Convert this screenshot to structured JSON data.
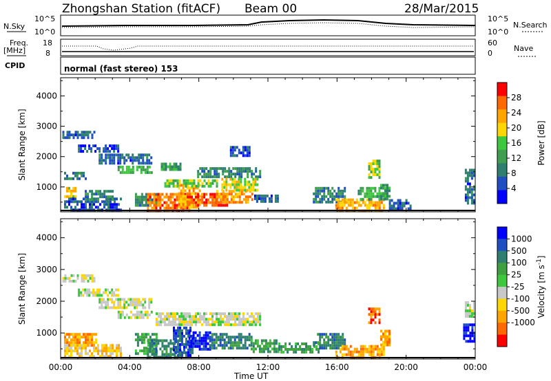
{
  "header": {
    "station": "Zhongshan Station (fitACF)",
    "beam": "Beam 00",
    "date": "28/Mar/2015"
  },
  "strip": {
    "nsky_label": "N.Sky",
    "nsearch_label": "N.Search",
    "noise_ticks": [
      "10^5",
      "10^0"
    ],
    "freq_label": "Freq.",
    "freq_unit": "[MHz]",
    "freq_ticks": [
      "18",
      "8"
    ],
    "nave_label": "Nave",
    "nave_ticks": [
      "60",
      "0"
    ],
    "cpid_label": "CPID",
    "cpid_text": "normal (fast stereo) 153"
  },
  "chart_data": [
    {
      "type": "heatmap",
      "panel": "power",
      "ylabel": "Slant Range [km]",
      "xlabel": "",
      "x_ticks": [
        "00:00",
        "04:00",
        "08:00",
        "12:00",
        "16:00",
        "20:00",
        "00:00"
      ],
      "xlim_hours": [
        0,
        24
      ],
      "y_ticks": [
        1000,
        2000,
        3000,
        4000
      ],
      "ylim": [
        180,
        4600
      ],
      "colorbar": {
        "label": "Power [dB]",
        "ticks": [
          "4",
          "8",
          "12",
          "16",
          "20",
          "24",
          "28"
        ],
        "range": [
          0,
          32
        ],
        "colors": [
          "#0000ff",
          "#1f4fc0",
          "#2f7f6f",
          "#3f9f4f",
          "#3fc83f",
          "#ffd700",
          "#ffa500",
          "#ff6a00",
          "#ff0000"
        ]
      },
      "bands": [
        {
          "x0": 0.1,
          "x1": 2.0,
          "y0": 2650,
          "y1": 2850,
          "level": 6
        },
        {
          "x0": 1.0,
          "x1": 3.3,
          "y0": 2150,
          "y1": 2400,
          "level": 5
        },
        {
          "x0": 2.2,
          "x1": 5.2,
          "y0": 1800,
          "y1": 2100,
          "level": 7
        },
        {
          "x0": 3.3,
          "x1": 5.3,
          "y0": 1450,
          "y1": 1700,
          "level": 14
        },
        {
          "x0": 0.2,
          "x1": 1.4,
          "y0": 1300,
          "y1": 1500,
          "level": 9
        },
        {
          "x0": 0.2,
          "x1": 0.8,
          "y0": 650,
          "y1": 1000,
          "level": 20
        },
        {
          "x0": 0.2,
          "x1": 3.5,
          "y0": 200,
          "y1": 650,
          "level": 6
        },
        {
          "x0": 1.4,
          "x1": 3.0,
          "y0": 600,
          "y1": 900,
          "level": 10
        },
        {
          "x0": 4.3,
          "x1": 5.7,
          "y0": 350,
          "y1": 800,
          "level": 10
        },
        {
          "x0": 5.0,
          "x1": 7.4,
          "y0": 250,
          "y1": 800,
          "level": 26
        },
        {
          "x0": 6.8,
          "x1": 8.0,
          "y0": 350,
          "y1": 1100,
          "level": 22
        },
        {
          "x0": 7.3,
          "x1": 9.6,
          "y0": 380,
          "y1": 800,
          "level": 28
        },
        {
          "x0": 9.0,
          "x1": 11.1,
          "y0": 500,
          "y1": 900,
          "level": 24
        },
        {
          "x0": 6.0,
          "x1": 9.1,
          "y0": 1050,
          "y1": 1250,
          "level": 16
        },
        {
          "x0": 7.9,
          "x1": 11.5,
          "y0": 1350,
          "y1": 1650,
          "level": 9
        },
        {
          "x0": 9.3,
          "x1": 11.4,
          "y0": 850,
          "y1": 1300,
          "level": 19
        },
        {
          "x0": 5.8,
          "x1": 6.9,
          "y0": 1600,
          "y1": 1800,
          "level": 12
        },
        {
          "x0": 9.8,
          "x1": 10.9,
          "y0": 2000,
          "y1": 2350,
          "level": 6
        },
        {
          "x0": 11.2,
          "x1": 12.6,
          "y0": 500,
          "y1": 750,
          "level": 7
        },
        {
          "x0": 14.6,
          "x1": 16.5,
          "y0": 500,
          "y1": 1000,
          "level": 9
        },
        {
          "x0": 15.9,
          "x1": 18.7,
          "y0": 220,
          "y1": 620,
          "level": 23
        },
        {
          "x0": 17.2,
          "x1": 18.8,
          "y0": 600,
          "y1": 1000,
          "level": 14
        },
        {
          "x0": 17.8,
          "x1": 18.5,
          "y0": 1300,
          "y1": 1900,
          "level": 16
        },
        {
          "x0": 18.5,
          "x1": 19.0,
          "y0": 600,
          "y1": 1100,
          "level": 12
        },
        {
          "x0": 19.0,
          "x1": 20.3,
          "y0": 300,
          "y1": 600,
          "level": 6
        },
        {
          "x0": 23.4,
          "x1": 23.95,
          "y0": 500,
          "y1": 1600,
          "level": 7
        }
      ]
    },
    {
      "type": "heatmap",
      "panel": "velocity",
      "ylabel": "Slant Range [km]",
      "xlabel": "Time UT",
      "x_ticks": [
        "00:00",
        "04:00",
        "08:00",
        "12:00",
        "16:00",
        "20:00",
        "00:00"
      ],
      "xlim_hours": [
        0,
        24
      ],
      "y_ticks": [
        1000,
        2000,
        3000,
        4000
      ],
      "ylim": [
        180,
        4600
      ],
      "colorbar": {
        "label": "Velocity [m s^-1]",
        "ticks": [
          "1000",
          "500",
          "100",
          "25",
          "-25",
          "-100",
          "-500",
          "-1000"
        ],
        "colors": [
          "#0000ff",
          "#1f4fc0",
          "#2f7f6f",
          "#3fa03f",
          "#3fc83f",
          "#c8c8c8",
          "#ffd700",
          "#ffa500",
          "#ff6a00",
          "#ff0000"
        ]
      },
      "bands": [
        {
          "x0": 0.1,
          "x1": 2.0,
          "y0": 2600,
          "y1": 2850,
          "level": 5
        },
        {
          "x0": 1.0,
          "x1": 3.3,
          "y0": 2150,
          "y1": 2400,
          "level": 5
        },
        {
          "x0": 2.2,
          "x1": 5.2,
          "y0": 1800,
          "y1": 2100,
          "level": 5
        },
        {
          "x0": 3.3,
          "x1": 5.3,
          "y0": 1450,
          "y1": 1700,
          "level": 5
        },
        {
          "x0": 5.5,
          "x1": 11.5,
          "y0": 1250,
          "y1": 1650,
          "level": 5
        },
        {
          "x0": 0.2,
          "x1": 2.0,
          "y0": 650,
          "y1": 1000,
          "level": 7
        },
        {
          "x0": 0.2,
          "x1": 3.5,
          "y0": 250,
          "y1": 650,
          "level": 6
        },
        {
          "x0": 4.3,
          "x1": 5.6,
          "y0": 350,
          "y1": 1000,
          "level": 3
        },
        {
          "x0": 5.0,
          "x1": 7.0,
          "y0": 250,
          "y1": 800,
          "level": 2
        },
        {
          "x0": 6.5,
          "x1": 7.6,
          "y0": 300,
          "y1": 1200,
          "level": 1
        },
        {
          "x0": 7.4,
          "x1": 8.6,
          "y0": 450,
          "y1": 1050,
          "level": 0
        },
        {
          "x0": 8.6,
          "x1": 11.0,
          "y0": 500,
          "y1": 1000,
          "level": 2
        },
        {
          "x0": 11.0,
          "x1": 12.6,
          "y0": 450,
          "y1": 800,
          "level": 3
        },
        {
          "x0": 12.6,
          "x1": 15.0,
          "y0": 400,
          "y1": 700,
          "level": 3
        },
        {
          "x0": 14.6,
          "x1": 16.5,
          "y0": 500,
          "y1": 1000,
          "level": 2
        },
        {
          "x0": 15.9,
          "x1": 18.7,
          "y0": 220,
          "y1": 620,
          "level": 7
        },
        {
          "x0": 17.8,
          "x1": 18.5,
          "y0": 1300,
          "y1": 1800,
          "level": 8
        },
        {
          "x0": 18.5,
          "x1": 19.0,
          "y0": 600,
          "y1": 1100,
          "level": 7
        },
        {
          "x0": 23.3,
          "x1": 23.9,
          "y0": 700,
          "y1": 1300,
          "level": 0
        },
        {
          "x0": 23.4,
          "x1": 23.95,
          "y0": 1500,
          "y1": 2000,
          "level": 5
        }
      ]
    }
  ]
}
